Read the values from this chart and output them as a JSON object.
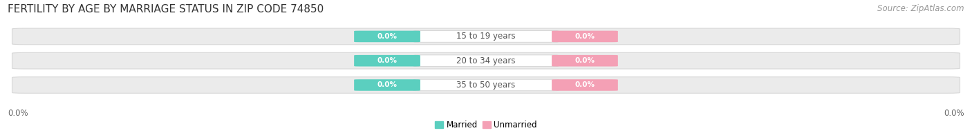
{
  "title": "FERTILITY BY AGE BY MARRIAGE STATUS IN ZIP CODE 74850",
  "source": "Source: ZipAtlas.com",
  "categories": [
    "15 to 19 years",
    "20 to 34 years",
    "35 to 50 years"
  ],
  "married_values": [
    0.0,
    0.0,
    0.0
  ],
  "unmarried_values": [
    0.0,
    0.0,
    0.0
  ],
  "married_color": "#5BCFBF",
  "unmarried_color": "#F4A0B5",
  "bar_bg_color": "#EBEBEB",
  "bar_bg_edge": "#D8D8D8",
  "background_color": "#ffffff",
  "title_fontsize": 11,
  "source_fontsize": 8.5,
  "label_fontsize": 8.5,
  "badge_fontsize": 7.5,
  "axis_label_fontsize": 8.5,
  "x_axis_label_left": "0.0%",
  "x_axis_label_right": "0.0%"
}
